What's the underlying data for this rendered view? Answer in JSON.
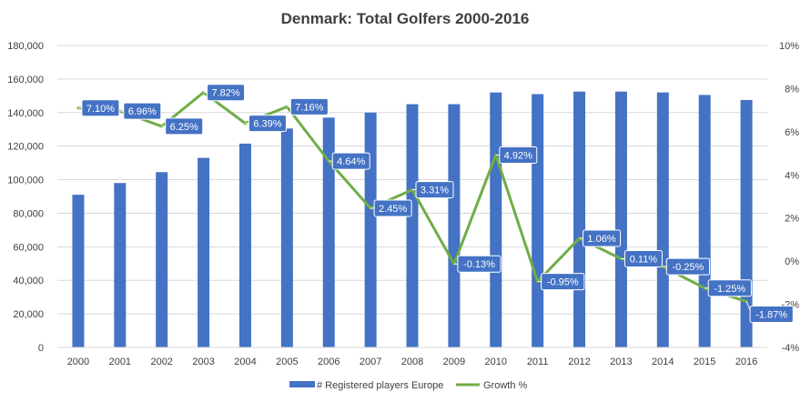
{
  "chart_data": {
    "type": "bar",
    "title": "Denmark: Total Golfers 2000-2016",
    "categories": [
      "2000",
      "2001",
      "2002",
      "2003",
      "2004",
      "2005",
      "2006",
      "2007",
      "2008",
      "2009",
      "2010",
      "2011",
      "2012",
      "2013",
      "2014",
      "2015",
      "2016"
    ],
    "series": [
      {
        "name": "# Registered players Europe",
        "type": "bar",
        "axis": "left",
        "color": "#4472C4",
        "values": [
          91000,
          98000,
          104500,
          113000,
          121500,
          130500,
          137000,
          140000,
          145000,
          145000,
          152000,
          151000,
          152500,
          152500,
          152000,
          150500,
          147500
        ]
      },
      {
        "name": "Growth %",
        "type": "line",
        "axis": "right",
        "color": "#70AD47",
        "values": [
          7.1,
          6.96,
          6.25,
          7.82,
          6.39,
          7.16,
          4.64,
          2.45,
          3.31,
          -0.13,
          4.92,
          -0.95,
          1.06,
          0.11,
          -0.25,
          -1.25,
          -1.87
        ],
        "labels": [
          "7.10%",
          "6.96%",
          "6.25%",
          "7.82%",
          "6.39%",
          "7.16%",
          "4.64%",
          "2.45%",
          "3.31%",
          "-0.13%",
          "4.92%",
          "-0.95%",
          "1.06%",
          "0.11%",
          "-0.25%",
          "-1.25%",
          "-1.87%"
        ],
        "label_bg": "#4472C4"
      }
    ],
    "y_left": {
      "min": 0,
      "max": 180000,
      "ticks": [
        "0",
        "20,000",
        "40,000",
        "60,000",
        "80,000",
        "100,000",
        "120,000",
        "140,000",
        "160,000",
        "180,000"
      ]
    },
    "y_right": {
      "min": -4,
      "max": 10,
      "ticks": [
        "-4%",
        "-2%",
        "0%",
        "2%",
        "4%",
        "6%",
        "8%",
        "10%"
      ]
    },
    "grid": true,
    "legend_position": "bottom"
  }
}
